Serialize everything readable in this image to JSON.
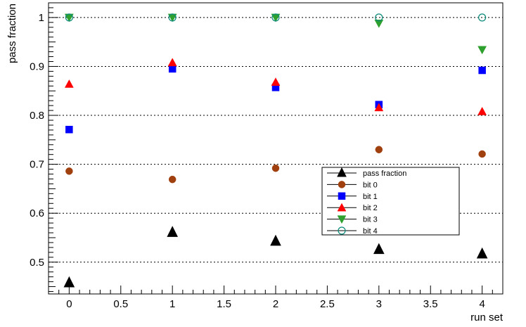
{
  "chart_data": {
    "type": "scatter",
    "xlabel": "run set",
    "ylabel": "pass fraction",
    "xlim": [
      -0.2,
      4.2
    ],
    "ylim": [
      0.435,
      1.03
    ],
    "x_ticks": [
      0,
      0.5,
      1,
      1.5,
      2,
      2.5,
      3,
      3.5,
      4
    ],
    "x_tick_labels": [
      "0",
      "0.5",
      "1",
      "1.5",
      "2",
      "2.5",
      "3",
      "3.5",
      "4"
    ],
    "y_ticks": [
      0.5,
      0.6,
      0.7,
      0.8,
      0.9,
      1.0
    ],
    "y_tick_labels": [
      "0.5",
      "0.6",
      "0.7",
      "0.8",
      "0.9",
      "1"
    ],
    "grid": "horizontal dotted",
    "legend_position": "lower-right",
    "x": [
      0,
      1,
      2,
      3,
      4
    ],
    "series": [
      {
        "name": "pass fraction",
        "marker": "triangle-up",
        "color": "#000000",
        "filled": true,
        "values": [
          0.458,
          0.561,
          0.543,
          0.526,
          0.517
        ]
      },
      {
        "name": "bit 0",
        "marker": "circle",
        "color": "#a0400f",
        "filled": true,
        "values": [
          0.686,
          0.669,
          0.692,
          0.73,
          0.721
        ]
      },
      {
        "name": "bit 1",
        "marker": "square",
        "color": "#0000ff",
        "filled": true,
        "values": [
          0.771,
          0.895,
          0.857,
          0.822,
          0.892
        ]
      },
      {
        "name": "bit 2",
        "marker": "triangle-up",
        "color": "#ff0000",
        "filled": true,
        "values": [
          0.864,
          0.908,
          0.868,
          0.816,
          0.808
        ]
      },
      {
        "name": "bit 3",
        "marker": "triangle-down",
        "color": "#2ea02e",
        "filled": true,
        "values": [
          1.0,
          1.0,
          1.0,
          0.988,
          0.934
        ]
      },
      {
        "name": "bit 4",
        "marker": "circle",
        "color": "#0a8a7a",
        "filled": false,
        "values": [
          1.0,
          1.0,
          1.0,
          1.0,
          1.0
        ]
      }
    ]
  }
}
